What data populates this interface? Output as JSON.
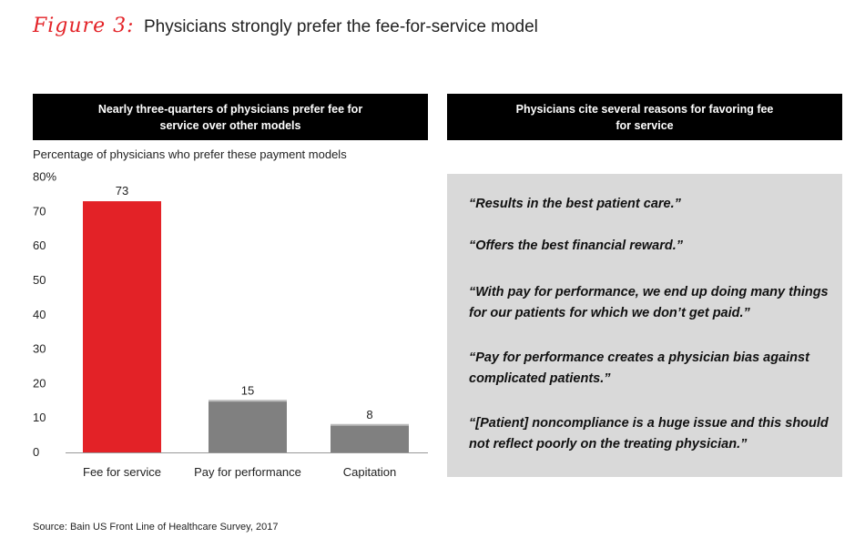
{
  "figure": {
    "label": "Figure 3:",
    "title": "Physicians strongly prefer the fee-for-service model"
  },
  "left_panel": {
    "header": "Nearly three-quarters of physicians prefer fee for service over other models",
    "subtitle": "Percentage of physicians who prefer these payment models"
  },
  "right_panel": {
    "header": "Physicians cite several reasons for favoring fee for service",
    "quotes": [
      "“Results in the best patient care.”",
      "“Offers the best financial reward.”",
      "“With pay for performance, we end up doing many things for our patients for which we don’t get paid.”",
      "“Pay for performance creates a physician bias against complicated patients.”",
      "“[Patient] noncompliance is a huge issue and this should not reflect poorly on the treating physician.”"
    ]
  },
  "source": "Source: Bain US Front Line of Healthcare Survey, 2017",
  "colors": {
    "accent": "#e32227",
    "bar_highlight": "#e32227",
    "bar_other": "#808080",
    "header_bg": "#000000",
    "quote_bg": "#d9d9d9"
  },
  "chart_data": {
    "type": "bar",
    "categories": [
      "Fee for service",
      "Pay for performance",
      "Capitation"
    ],
    "values": [
      73,
      15,
      8
    ],
    "ylim": [
      0,
      80
    ],
    "yticks": [
      0,
      10,
      20,
      30,
      40,
      50,
      60,
      70,
      80
    ],
    "ytick_labels": [
      "0",
      "10",
      "20",
      "30",
      "40",
      "50",
      "60",
      "70",
      "80%"
    ],
    "grid": false,
    "legend": "none"
  }
}
